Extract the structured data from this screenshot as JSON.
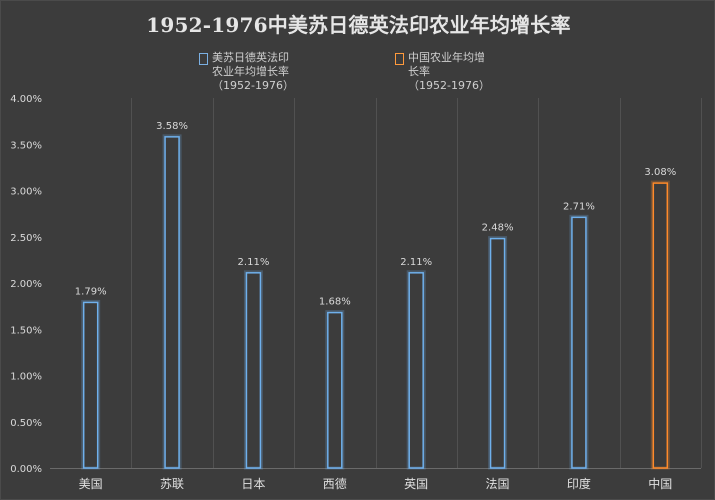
{
  "chart_data": {
    "type": "bar",
    "title": "1952-1976中美苏日德英法印农业年均增长率",
    "categories": [
      "美国",
      "苏联",
      "日本",
      "西德",
      "英国",
      "法国",
      "印度",
      "中国"
    ],
    "values": [
      1.79,
      3.58,
      2.11,
      1.68,
      2.11,
      2.48,
      2.71,
      3.08
    ],
    "value_labels": [
      "1.79%",
      "3.58%",
      "2.11%",
      "1.68%",
      "2.11%",
      "2.48%",
      "2.71%",
      "3.08%"
    ],
    "series": [
      {
        "name": "美苏日德英法印农业年均增长率",
        "categories": [
          "美国",
          "苏联",
          "日本",
          "西德",
          "英国",
          "法国",
          "印度"
        ],
        "color": "#6fb0ec"
      },
      {
        "name": "中国农业年均增长率",
        "categories": [
          "中国"
        ],
        "color": "#ff8a2a"
      }
    ],
    "ylim": [
      0,
      4.0
    ],
    "yticks": [
      0,
      0.5,
      1.0,
      1.5,
      2.0,
      2.5,
      3.0,
      3.5,
      4.0
    ],
    "ytick_labels": [
      "0.00%",
      "0.50%",
      "1.00%",
      "1.50%",
      "2.00%",
      "2.50%",
      "3.00%",
      "3.50%",
      "4.00%"
    ],
    "xlabel": "",
    "ylabel": "",
    "grid": "vertical",
    "legend_position": "top-center"
  },
  "legend": {
    "item1_label": "美苏日德英法印农业年均增长率",
    "item1_sub": "（1952-1976）",
    "item2_label": "中国农业年均增长率",
    "item2_sub": "（1952-1976）"
  },
  "colors": {
    "background": "#3c3c3c",
    "bar_blue": "#6fb0ec",
    "bar_orange": "#ff8a2a",
    "grid": "#515151",
    "text": "#d9d9d9"
  }
}
